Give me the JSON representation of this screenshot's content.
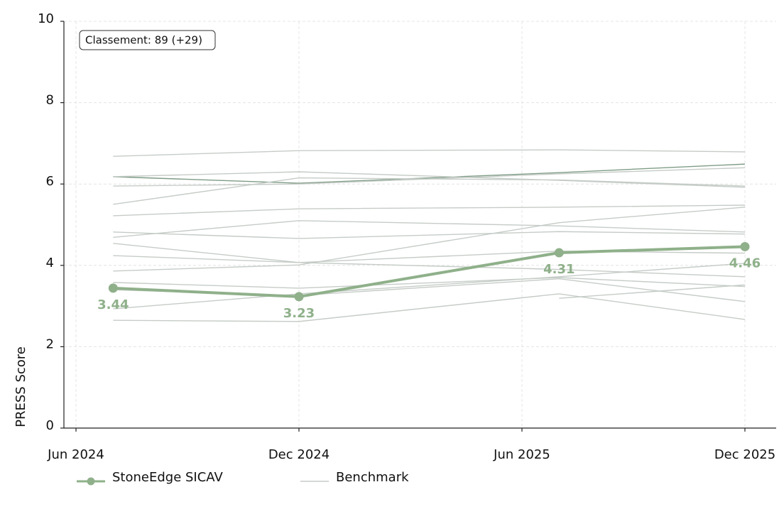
{
  "chart_data": {
    "type": "line",
    "y_label": "PRESS Score",
    "annotation": "Classement: 89 (+29)",
    "x": [
      "2024-07",
      "2024-12",
      "2025-07",
      "2025-12"
    ],
    "xlim": [
      "2024-06",
      "2025-12"
    ],
    "xticks": [
      {
        "value": "2024-06",
        "label": "Jun 2024"
      },
      {
        "value": "2024-12",
        "label": "Dec 2024"
      },
      {
        "value": "2025-06",
        "label": "Jun 2025"
      },
      {
        "value": "2025-12",
        "label": "Dec 2025"
      }
    ],
    "ylim": [
      0,
      10
    ],
    "yticks": [
      0,
      2,
      4,
      6,
      8,
      10
    ],
    "grid": true,
    "legend": "bottom",
    "series": [
      {
        "name": "StoneEdge SICAV",
        "color": "#8fb08a",
        "values": [
          3.44,
          3.23,
          4.31,
          4.46
        ],
        "labels": true
      },
      {
        "name": "Benchmark",
        "color": "#c5ccc7",
        "values": [
          6.68,
          6.82,
          6.84,
          6.79
        ]
      },
      {
        "name": "Benchmark",
        "color": "#7f9c86",
        "values": [
          6.18,
          6.02,
          6.28,
          6.49
        ]
      },
      {
        "name": "Benchmark",
        "color": "#c5ccc7",
        "values": [
          6.18,
          6.3,
          6.09,
          5.92
        ]
      },
      {
        "name": "Benchmark",
        "color": "#c5ccc7",
        "values": [
          5.95,
          6.0,
          6.25,
          6.4
        ]
      },
      {
        "name": "Benchmark",
        "color": "#c5ccc7",
        "values": [
          5.5,
          6.15,
          6.1,
          5.95
        ]
      },
      {
        "name": "Benchmark",
        "color": "#c5ccc7",
        "values": [
          5.22,
          5.39,
          5.43,
          5.48
        ]
      },
      {
        "name": "Benchmark",
        "color": "#c5ccc7",
        "values": [
          4.69,
          5.1,
          4.97,
          4.82
        ]
      },
      {
        "name": "Benchmark",
        "color": "#c5ccc7",
        "values": [
          4.82,
          4.66,
          4.83,
          4.77
        ]
      },
      {
        "name": "Benchmark",
        "color": "#c5ccc7",
        "values": [
          4.54,
          4.07,
          4.35,
          4.3
        ]
      },
      {
        "name": "Benchmark",
        "color": "#c5ccc7",
        "values": [
          4.24,
          4.07,
          3.9,
          3.72
        ]
      },
      {
        "name": "Benchmark",
        "color": "#c5ccc7",
        "values": [
          3.86,
          4.01,
          5.05,
          5.43
        ]
      },
      {
        "name": "Benchmark",
        "color": "#c5ccc7",
        "values": [
          3.58,
          3.44,
          3.7,
          3.48
        ]
      },
      {
        "name": "Benchmark",
        "color": "#c5ccc7",
        "values": [
          2.93,
          3.3,
          3.72,
          4.05
        ]
      },
      {
        "name": "Benchmark",
        "color": "#c5ccc7",
        "values": [
          2.65,
          2.62,
          3.3,
          2.67
        ]
      },
      {
        "name": "Benchmark",
        "color": "#c5ccc7",
        "values": [
          null,
          null,
          3.19,
          3.52
        ]
      },
      {
        "name": "Benchmark",
        "color": "#c5ccc7",
        "values": [
          3.4,
          3.26,
          3.67,
          3.11
        ]
      }
    ]
  }
}
